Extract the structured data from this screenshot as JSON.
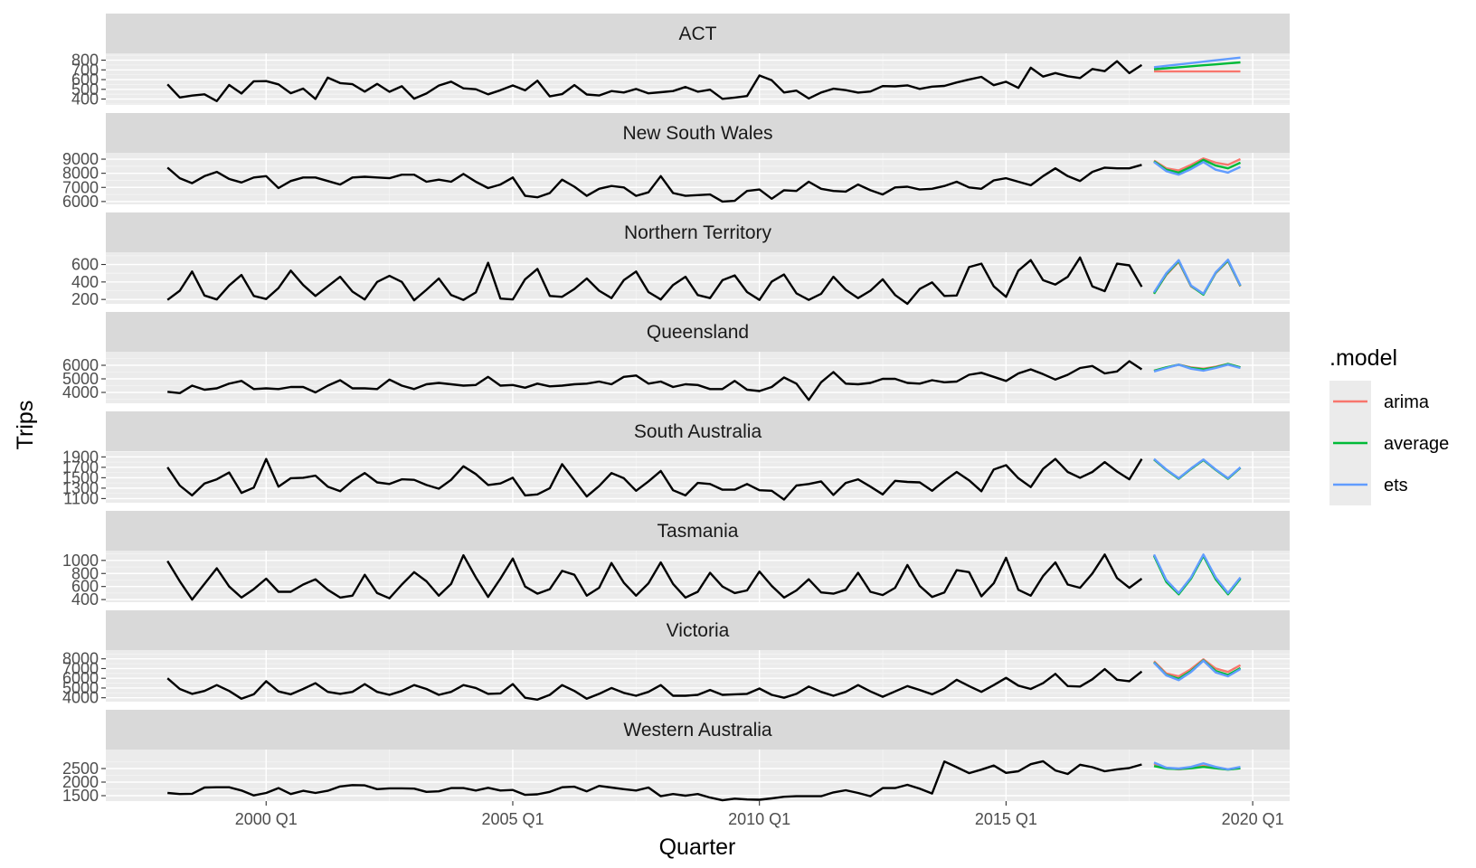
{
  "chart_data": {
    "type": "line",
    "xlabel": "Quarter",
    "ylabel": "Trips",
    "legend": {
      "title": ".model",
      "position": "right",
      "entries": [
        {
          "name": "arima",
          "color": "#F8766D"
        },
        {
          "name": "average",
          "color": "#00BA38"
        },
        {
          "name": "ets",
          "color": "#619CFF"
        }
      ]
    },
    "history_color": "#000000",
    "x_ticks": [
      "2000 Q1",
      "2005 Q1",
      "2010 Q1",
      "2015 Q1",
      "2020 Q1"
    ],
    "x_range": [
      "1996 Q4",
      "2020 Q4"
    ],
    "history_start": "1998 Q1",
    "forecast_start": "2018 Q1",
    "grid": true,
    "panels": [
      {
        "name": "ACT",
        "ylim": [
          340,
          870
        ],
        "yticks": [
          400,
          500,
          600,
          700,
          800
        ],
        "history": [
          551,
          416,
          436,
          449,
          379,
          545,
          457,
          583,
          585,
          551,
          460,
          507,
          401,
          620,
          564,
          553,
          477,
          556,
          475,
          532,
          404,
          457,
          539,
          579,
          510,
          501,
          449,
          491,
          540,
          490,
          588,
          427,
          451,
          544,
          447,
          437,
          482,
          467,
          504,
          459,
          470,
          482,
          524,
          476,
          496,
          402,
          415,
          431,
          642,
          593,
          467,
          487,
          406,
          467,
          506,
          492,
          466,
          478,
          533,
          531,
          541,
          505,
          528,
          535,
          571,
          601,
          628,
          543,
          578,
          515,
          722,
          631,
          667,
          635,
          616,
          709,
          687,
          789,
          666,
          750
        ],
        "forecast": {
          "arima": [
            685,
            685,
            685,
            685,
            685,
            685,
            685,
            685
          ],
          "average": [
            707,
            717,
            727,
            737,
            747,
            757,
            767,
            777
          ],
          "ets": [
            728,
            742,
            756,
            770,
            784,
            798,
            812,
            826
          ]
        }
      },
      {
        "name": "New South Wales",
        "ylim": [
          5800,
          9450
        ],
        "yticks": [
          6000,
          7000,
          8000,
          9000
        ],
        "history": [
          8400,
          7650,
          7300,
          7800,
          8100,
          7600,
          7350,
          7700,
          7800,
          6950,
          7450,
          7700,
          7700,
          7450,
          7200,
          7700,
          7750,
          7700,
          7650,
          7900,
          7900,
          7400,
          7550,
          7400,
          7950,
          7400,
          6950,
          7200,
          7700,
          6400,
          6300,
          6600,
          7550,
          7050,
          6400,
          6900,
          7100,
          7000,
          6400,
          6650,
          7800,
          6600,
          6400,
          6450,
          6500,
          6000,
          6050,
          6750,
          6850,
          6200,
          6800,
          6750,
          7400,
          6900,
          6750,
          6700,
          7200,
          6800,
          6500,
          7000,
          7050,
          6850,
          6900,
          7100,
          7400,
          7000,
          6900,
          7500,
          7650,
          7400,
          7150,
          7800,
          8350,
          7800,
          7450,
          8100,
          8400,
          8350,
          8350,
          8600
        ],
        "forecast": {
          "arima": [
            8900,
            8350,
            8200,
            8600,
            9050,
            8750,
            8600,
            9000
          ],
          "average": [
            8850,
            8250,
            8050,
            8450,
            8950,
            8550,
            8350,
            8750
          ],
          "ets": [
            8800,
            8150,
            7900,
            8300,
            8800,
            8250,
            8050,
            8450
          ]
        }
      },
      {
        "name": "Northern Territory",
        "ylim": [
          150,
          740
        ],
        "yticks": [
          200,
          400,
          600
        ],
        "history": [
          195,
          300,
          520,
          245,
          200,
          360,
          480,
          240,
          205,
          330,
          530,
          365,
          240,
          350,
          460,
          290,
          200,
          400,
          470,
          400,
          190,
          310,
          440,
          250,
          195,
          280,
          620,
          210,
          200,
          430,
          550,
          240,
          230,
          320,
          440,
          300,
          215,
          420,
          520,
          285,
          200,
          365,
          460,
          250,
          215,
          420,
          475,
          285,
          195,
          405,
          485,
          270,
          195,
          265,
          460,
          310,
          215,
          300,
          430,
          250,
          150,
          320,
          395,
          240,
          245,
          570,
          610,
          350,
          230,
          530,
          650,
          420,
          370,
          460,
          680,
          350,
          295,
          610,
          590,
          345
        ],
        "forecast": {
          "arima": [
            270,
            480,
            630,
            350,
            260,
            500,
            640,
            350
          ],
          "average": [
            265,
            490,
            640,
            355,
            255,
            505,
            645,
            355
          ],
          "ets": [
            280,
            500,
            650,
            360,
            265,
            510,
            655,
            360
          ]
        }
      },
      {
        "name": "Queensland",
        "ylim": [
          3200,
          7000
        ],
        "yticks": [
          4000,
          5000,
          6000
        ],
        "history": [
          4050,
          3950,
          4500,
          4200,
          4300,
          4650,
          4850,
          4250,
          4300,
          4250,
          4400,
          4400,
          4000,
          4500,
          4900,
          4300,
          4300,
          4250,
          4950,
          4500,
          4250,
          4600,
          4700,
          4600,
          4500,
          4550,
          5150,
          4500,
          4550,
          4350,
          4650,
          4450,
          4500,
          4600,
          4650,
          4800,
          4600,
          5150,
          5250,
          4650,
          4800,
          4400,
          4600,
          4550,
          4250,
          4250,
          4850,
          4200,
          4100,
          4400,
          5100,
          4650,
          3450,
          4750,
          5500,
          4650,
          4600,
          4700,
          5000,
          5000,
          4700,
          4650,
          4900,
          4750,
          4800,
          5300,
          5450,
          5150,
          4850,
          5400,
          5700,
          5350,
          4950,
          5300,
          5800,
          5950,
          5400,
          5550,
          6300,
          5700
        ],
        "forecast": {
          "arima": [
            5600,
            5850,
            6050,
            5850,
            5750,
            5900,
            6100,
            5850
          ],
          "average": [
            5600,
            5850,
            6050,
            5800,
            5700,
            5850,
            6100,
            5850
          ],
          "ets": [
            5550,
            5800,
            6050,
            5750,
            5600,
            5800,
            6050,
            5800
          ]
        }
      },
      {
        "name": "South Australia",
        "ylim": [
          1020,
          2010
        ],
        "yticks": [
          1100,
          1300,
          1500,
          1700,
          1900
        ],
        "history": [
          1700,
          1350,
          1160,
          1390,
          1470,
          1600,
          1210,
          1310,
          1860,
          1330,
          1490,
          1500,
          1540,
          1330,
          1240,
          1440,
          1590,
          1410,
          1380,
          1470,
          1460,
          1360,
          1290,
          1460,
          1720,
          1570,
          1360,
          1390,
          1500,
          1160,
          1180,
          1300,
          1760,
          1450,
          1140,
          1340,
          1590,
          1490,
          1250,
          1430,
          1630,
          1260,
          1160,
          1400,
          1380,
          1270,
          1270,
          1380,
          1260,
          1250,
          1080,
          1350,
          1380,
          1430,
          1170,
          1400,
          1470,
          1330,
          1180,
          1440,
          1420,
          1410,
          1250,
          1440,
          1610,
          1450,
          1240,
          1660,
          1740,
          1490,
          1320,
          1670,
          1860,
          1610,
          1500,
          1610,
          1800,
          1620,
          1470,
          1860
        ],
        "forecast": {
          "arima": [
            1850,
            1650,
            1480,
            1670,
            1840,
            1650,
            1480,
            1690
          ],
          "average": [
            1850,
            1650,
            1480,
            1670,
            1840,
            1650,
            1480,
            1690
          ],
          "ets": [
            1860,
            1660,
            1490,
            1680,
            1850,
            1660,
            1490,
            1700
          ]
        }
      },
      {
        "name": "Tasmania",
        "ylim": [
          360,
          1150
        ],
        "yticks": [
          400,
          600,
          800,
          1000
        ],
        "history": [
          990,
          680,
          400,
          640,
          880,
          600,
          430,
          560,
          720,
          520,
          520,
          630,
          710,
          550,
          430,
          460,
          780,
          500,
          420,
          630,
          820,
          680,
          460,
          640,
          1080,
          740,
          440,
          720,
          1030,
          600,
          490,
          560,
          840,
          780,
          460,
          580,
          960,
          660,
          460,
          650,
          970,
          640,
          430,
          520,
          810,
          600,
          500,
          540,
          830,
          610,
          430,
          540,
          710,
          510,
          490,
          550,
          810,
          520,
          470,
          580,
          930,
          610,
          440,
          510,
          850,
          820,
          450,
          650,
          1040,
          550,
          460,
          760,
          970,
          630,
          580,
          800,
          1090,
          730,
          580,
          720
        ],
        "forecast": {
          "arima": [
            1080,
            680,
            490,
            730,
            1080,
            720,
            490,
            730
          ],
          "average": [
            1070,
            670,
            480,
            720,
            1070,
            710,
            480,
            720
          ],
          "ets": [
            1090,
            700,
            500,
            740,
            1090,
            740,
            500,
            740
          ]
        }
      },
      {
        "name": "Victoria",
        "ylim": [
          3600,
          8900
        ],
        "yticks": [
          4000,
          5000,
          6000,
          7000,
          8000
        ],
        "history": [
          6000,
          4900,
          4400,
          4700,
          5300,
          4700,
          3900,
          4350,
          5700,
          4650,
          4350,
          4900,
          5500,
          4600,
          4400,
          4600,
          5400,
          4600,
          4300,
          4700,
          5300,
          4900,
          4300,
          4600,
          5300,
          5000,
          4400,
          4450,
          5400,
          4000,
          3800,
          4300,
          5300,
          4700,
          3900,
          4400,
          5000,
          4500,
          4200,
          4600,
          5300,
          4200,
          4200,
          4300,
          4800,
          4300,
          4350,
          4400,
          4950,
          4300,
          4000,
          4400,
          5150,
          4600,
          4200,
          4600,
          5300,
          4650,
          4100,
          4650,
          5200,
          4800,
          4350,
          4950,
          5850,
          5200,
          4600,
          5300,
          6050,
          5250,
          4900,
          5500,
          6450,
          5200,
          5150,
          5900,
          6950,
          5850,
          5700,
          6700
        ],
        "forecast": {
          "arima": [
            7750,
            6500,
            6200,
            6950,
            7950,
            7000,
            6650,
            7350
          ],
          "average": [
            7650,
            6350,
            5950,
            6750,
            7850,
            6750,
            6350,
            7050
          ],
          "ets": [
            7600,
            6300,
            5800,
            6650,
            7800,
            6600,
            6200,
            6950
          ]
        }
      },
      {
        "name": "Western Australia",
        "ylim": [
          1300,
          3200
        ],
        "yticks": [
          1500,
          2000,
          2500
        ],
        "history": [
          1600,
          1560,
          1570,
          1800,
          1810,
          1810,
          1690,
          1510,
          1600,
          1780,
          1560,
          1680,
          1600,
          1680,
          1840,
          1890,
          1880,
          1740,
          1770,
          1770,
          1760,
          1640,
          1660,
          1780,
          1780,
          1690,
          1790,
          1690,
          1710,
          1530,
          1550,
          1640,
          1810,
          1830,
          1660,
          1860,
          1800,
          1740,
          1690,
          1800,
          1480,
          1560,
          1500,
          1560,
          1430,
          1330,
          1390,
          1360,
          1350,
          1400,
          1460,
          1480,
          1480,
          1480,
          1620,
          1700,
          1600,
          1480,
          1780,
          1780,
          1900,
          1760,
          1580,
          2760,
          2550,
          2330,
          2460,
          2610,
          2340,
          2400,
          2660,
          2770,
          2430,
          2300,
          2640,
          2550,
          2400,
          2470,
          2520,
          2650
        ],
        "forecast": {
          "arima": [
            2670,
            2530,
            2470,
            2520,
            2600,
            2530,
            2470,
            2520
          ],
          "average": [
            2590,
            2500,
            2480,
            2510,
            2560,
            2510,
            2460,
            2510
          ],
          "ets": [
            2720,
            2530,
            2500,
            2560,
            2690,
            2560,
            2470,
            2560
          ]
        }
      }
    ]
  }
}
